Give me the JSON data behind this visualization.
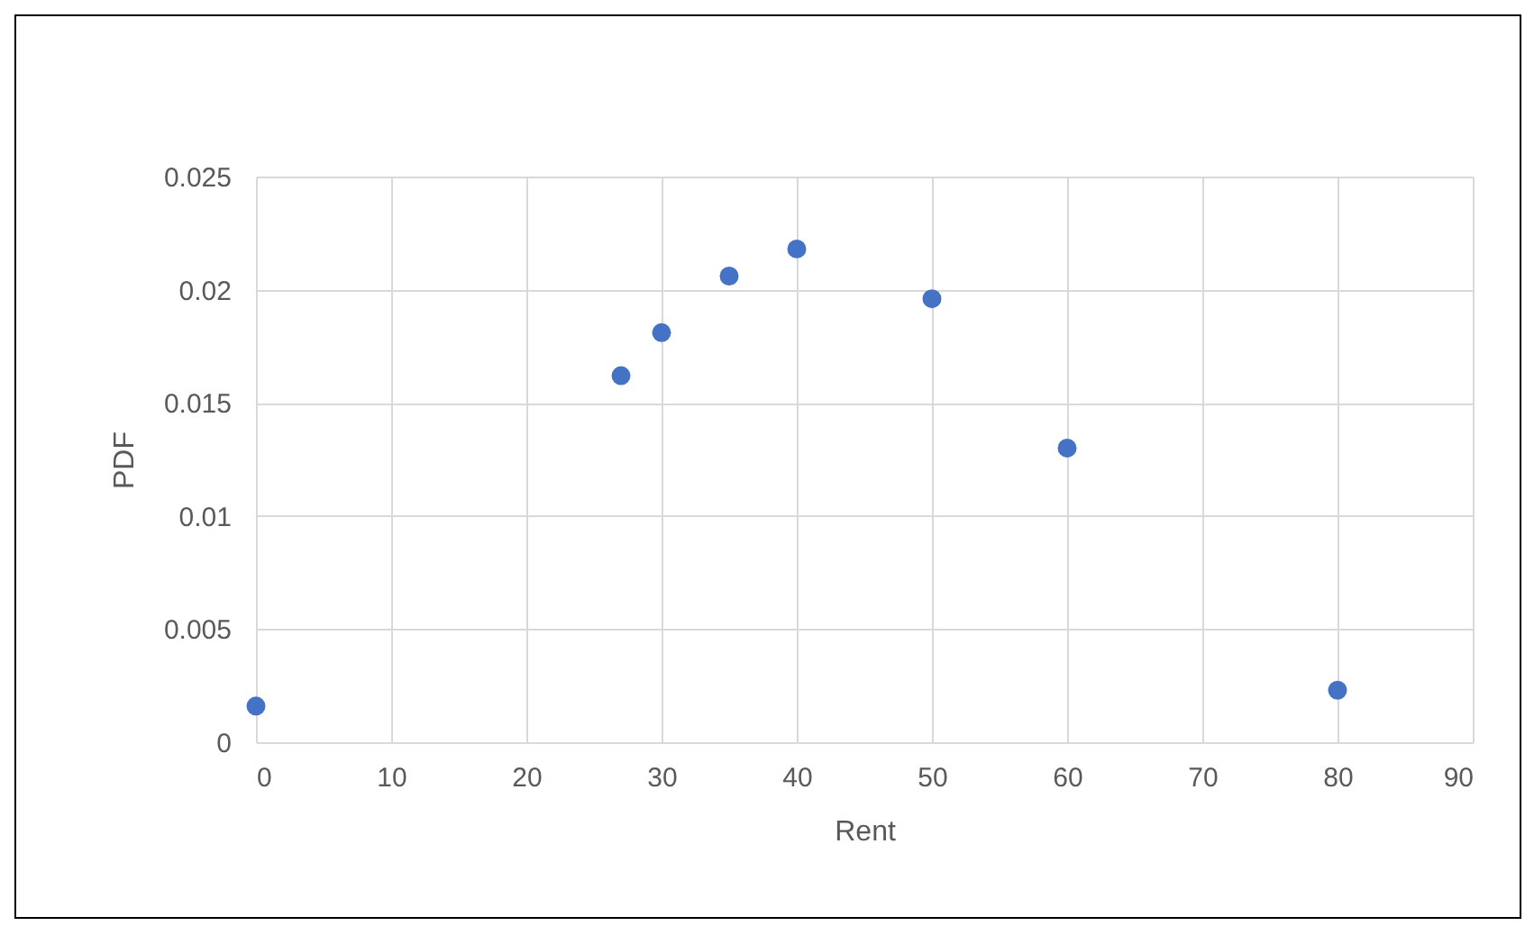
{
  "chart_data": {
    "type": "scatter",
    "xlabel": "Rent",
    "ylabel": "PDF",
    "x": [
      0,
      27,
      30,
      35,
      40,
      50,
      60,
      80
    ],
    "series": [
      {
        "color": "#4472c4",
        "values": [
          0.0016,
          0.0162,
          0.0181,
          0.0206,
          0.0218,
          0.0196,
          0.013,
          0.0023
        ]
      }
    ],
    "xlim": [
      0,
      90
    ],
    "xticks": [
      0,
      10,
      20,
      30,
      40,
      50,
      60,
      70,
      80,
      90
    ],
    "ylim": [
      0,
      0.025
    ],
    "yticks": [
      0,
      0.005,
      0.01,
      0.015,
      0.02,
      0.025
    ],
    "grid": true,
    "marker": "circle",
    "legend": false
  }
}
